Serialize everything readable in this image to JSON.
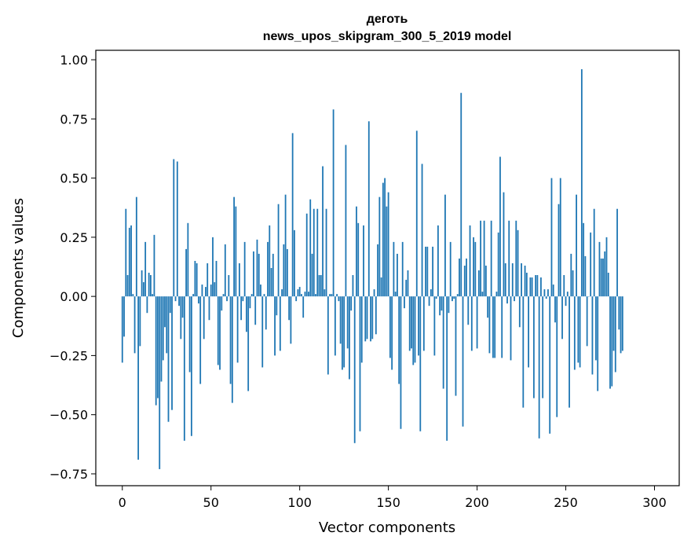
{
  "chart_data": {
    "type": "bar",
    "title": "деготь",
    "subtitle": "news_upos_skipgram_300_5_2019 model",
    "xlabel": "Vector components",
    "ylabel": "Components values",
    "xlim": [
      -14.95,
      313.95
    ],
    "ylim": [
      -0.8,
      1.04
    ],
    "xticks": [
      0,
      50,
      100,
      150,
      200,
      250,
      300
    ],
    "xtick_labels": [
      "0",
      "50",
      "100",
      "150",
      "200",
      "250",
      "300"
    ],
    "yticks": [
      -0.75,
      -0.5,
      -0.25,
      0.0,
      0.25,
      0.5,
      0.75,
      1.0
    ],
    "ytick_labels": [
      "−0.75",
      "−0.50",
      "−0.25",
      "0.00",
      "0.25",
      "0.50",
      "0.75",
      "1.00"
    ],
    "bar_color": "#1f77b4",
    "x": "indices 0-299",
    "values": [
      -0.28,
      -0.17,
      0.37,
      0.09,
      0.29,
      0.3,
      0.01,
      -0.24,
      0.42,
      -0.69,
      -0.21,
      0.11,
      0.06,
      0.23,
      -0.07,
      0.1,
      0.09,
      0.01,
      0.26,
      -0.46,
      -0.43,
      -0.73,
      -0.36,
      -0.27,
      -0.13,
      -0.24,
      -0.53,
      -0.07,
      -0.48,
      0.58,
      -0.02,
      0.57,
      -0.04,
      -0.18,
      -0.09,
      -0.61,
      0.2,
      0.31,
      -0.32,
      -0.59,
      0.01,
      0.15,
      0.14,
      -0.03,
      -0.37,
      0.05,
      -0.18,
      0.04,
      0.14,
      -0.1,
      0.05,
      0.25,
      0.06,
      0.15,
      -0.29,
      -0.31,
      -0.06,
      0.01,
      0.22,
      -0.02,
      0.09,
      -0.37,
      -0.45,
      0.42,
      0.38,
      -0.28,
      0.14,
      -0.1,
      -0.02,
      0.23,
      -0.15,
      -0.4,
      -0.05,
      0.01,
      0.19,
      -0.12,
      0.24,
      0.18,
      0.05,
      -0.3,
      0.01,
      -0.14,
      0.23,
      0.3,
      0.12,
      0.18,
      -0.25,
      -0.08,
      0.39,
      -0.23,
      0.03,
      0.22,
      0.43,
      0.2,
      -0.1,
      -0.2,
      0.69,
      0.28,
      -0.02,
      0.03,
      0.04,
      0.01,
      -0.09,
      0.02,
      0.35,
      0.02,
      0.41,
      0.18,
      0.37,
      0.01,
      0.37,
      0.09,
      0.09,
      0.55,
      0.03,
      0.37,
      -0.33,
      0.01,
      0.01,
      0.79,
      -0.25,
      0.01,
      -0.02,
      -0.2,
      -0.31,
      -0.3,
      0.64,
      -0.22,
      -0.35,
      -0.06,
      0.09,
      -0.62,
      0.38,
      0.31,
      -0.57,
      -0.28,
      0.3,
      -0.19,
      -0.18,
      0.74,
      -0.19,
      -0.18,
      0.03,
      -0.16,
      0.22,
      0.42,
      0.08,
      0.48,
      0.5,
      0.38,
      0.44,
      -0.26,
      -0.31,
      0.23,
      0.02,
      0.18,
      -0.37,
      -0.56,
      0.23,
      -0.05,
      0.07,
      0.11,
      -0.23,
      -0.22,
      -0.29,
      -0.28,
      0.7,
      -0.25,
      -0.57,
      0.56,
      -0.23,
      0.21,
      0.21,
      -0.04,
      0.03,
      0.21,
      -0.25,
      -0.01,
      0.3,
      -0.08,
      -0.06,
      -0.39,
      0.43,
      -0.61,
      -0.07,
      0.23,
      -0.02,
      -0.01,
      -0.42,
      0.01,
      0.16,
      0.86,
      -0.55,
      0.13,
      0.16,
      -0.12,
      0.3,
      -0.23,
      0.25,
      0.23,
      -0.22,
      0.11,
      0.32,
      0.02,
      0.32,
      0.13,
      -0.09,
      -0.24,
      0.32,
      -0.26,
      -0.26,
      0.02,
      0.27,
      0.59,
      -0.26,
      0.44,
      0.14,
      -0.03,
      0.32,
      -0.27,
      0.14,
      -0.02,
      0.32,
      0.28,
      -0.13,
      0.14,
      -0.47,
      0.13,
      0.1,
      -0.3,
      0.08,
      0.08,
      -0.43,
      0.09,
      0.09,
      -0.6,
      0.08,
      -0.43,
      0.03,
      -0.01,
      0.03,
      -0.58,
      0.5,
      0.05,
      -0.11,
      -0.51,
      0.39,
      0.5,
      -0.18,
      0.09,
      -0.04,
      0.02,
      -0.47,
      0.18,
      0.11,
      -0.31,
      0.43,
      -0.28,
      -0.3,
      0.96,
      0.31,
      0.17,
      -0.21,
      0.0,
      0.27,
      -0.33,
      0.37,
      -0.27,
      -0.4,
      0.23,
      0.16,
      0.16,
      0.19,
      0.25,
      0.1,
      -0.39,
      -0.38,
      -0.23,
      -0.32,
      0.37,
      -0.14,
      -0.24,
      -0.23
    ]
  }
}
